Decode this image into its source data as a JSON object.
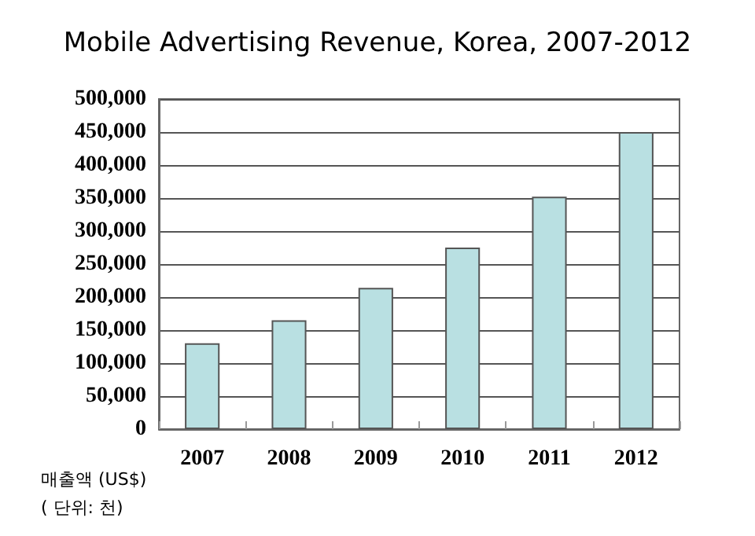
{
  "chart_data": {
    "type": "bar",
    "title": "Mobile Advertising Revenue, Korea, 2007-2012",
    "ylabel": "매출액 (US$)\n( 단위: 천)",
    "categories": [
      "2007",
      "2008",
      "2009",
      "2010",
      "2011",
      "2012"
    ],
    "values": [
      130000,
      165000,
      214000,
      275000,
      352000,
      450000
    ],
    "color": "#b9e0e2",
    "ylim": [
      0,
      500000
    ],
    "yticks": [
      0,
      {
        "value": 50000,
        "label": "50,000"
      },
      {
        "value": 100000,
        "label": "100,000"
      },
      {
        "value": 150000,
        "label": "150,000"
      },
      {
        "value": 200000,
        "label": "200,000"
      },
      {
        "value": 250000,
        "label": "250,000"
      },
      {
        "value": 300000,
        "label": "300,000"
      },
      {
        "value": 350000,
        "label": "350,000"
      },
      {
        "value": 400000,
        "label": "400,000"
      },
      {
        "value": 450000,
        "label": "450,000"
      },
      {
        "value": 500000,
        "label": "500,000"
      }
    ],
    "grid": "y"
  }
}
